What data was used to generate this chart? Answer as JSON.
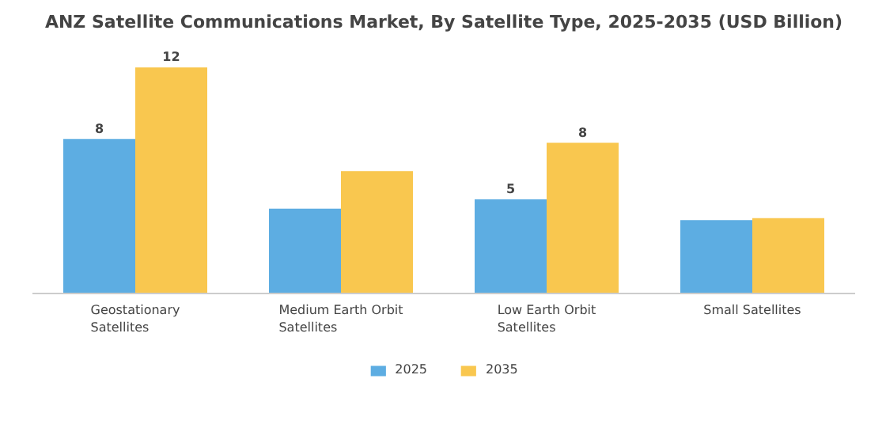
{
  "chart_data": {
    "type": "bar",
    "title": "ANZ Satellite Communications Market, By Satellite Type, 2025-2035 (USD Billion)",
    "categories": [
      "Geostationary\nSatellites",
      "Medium Earth Orbit\nSatellites",
      "Low Earth Orbit\nSatellites",
      "Small Satellites"
    ],
    "series": [
      {
        "name": "2025",
        "color": "#5dade2",
        "values": [
          8.2,
          4.5,
          5,
          3.9
        ],
        "value_labels": [
          "8",
          null,
          "5",
          null
        ]
      },
      {
        "name": "2035",
        "color": "#f9c74f",
        "values": [
          12,
          6.5,
          8,
          4
        ],
        "value_labels": [
          "12",
          null,
          "8",
          null
        ]
      }
    ],
    "legend": "bottom"
  }
}
